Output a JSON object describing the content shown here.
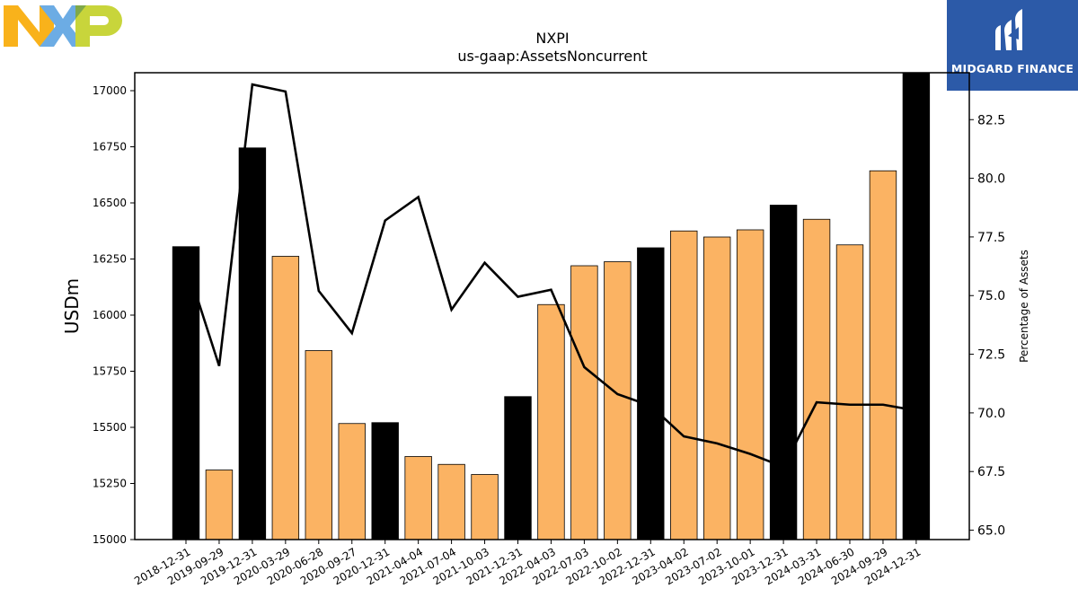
{
  "branding": {
    "company_logo_text": "NXP",
    "publisher_name": "MIDGARD FINANCE",
    "publisher_icon": "midgard-m-icon",
    "nxp_colors": [
      "#f9b21b",
      "#6cace4",
      "#c8d53b"
    ],
    "publisher_bg": "#2c5aa8"
  },
  "chart_data": {
    "type": "bar",
    "title": "NXPI",
    "subtitle": "us-gaap:AssetsNoncurrent",
    "ylabel": "USDm",
    "y2label": "Percentage of Assets",
    "ylim": [
      15000,
      17080
    ],
    "y2lim": [
      64.6,
      84.5
    ],
    "yticks": [
      15000,
      15250,
      15500,
      15750,
      16000,
      16250,
      16500,
      16750,
      17000
    ],
    "y2ticks": [
      65.0,
      67.5,
      70.0,
      72.5,
      75.0,
      77.5,
      80.0,
      82.5
    ],
    "grid": false,
    "categories": [
      "2018-12-31",
      "2019-09-29",
      "2019-12-31",
      "2020-03-29",
      "2020-06-28",
      "2020-09-27",
      "2020-12-31",
      "2021-04-04",
      "2021-07-04",
      "2021-10-03",
      "2021-12-31",
      "2022-04-03",
      "2022-07-03",
      "2022-10-02",
      "2022-12-31",
      "2023-04-02",
      "2023-07-02",
      "2023-10-01",
      "2023-12-31",
      "2024-03-31",
      "2024-06-30",
      "2024-09-29",
      "2024-12-31"
    ],
    "values": [
      16305,
      15310,
      16745,
      16262,
      15842,
      15517,
      15521,
      15370,
      15335,
      15290,
      15637,
      16047,
      16220,
      16238,
      16300,
      16375,
      16348,
      16380,
      16490,
      16427,
      16313,
      16643,
      17085
    ],
    "annual": [
      true,
      false,
      true,
      false,
      false,
      false,
      true,
      false,
      false,
      false,
      true,
      false,
      false,
      false,
      true,
      false,
      false,
      false,
      true,
      false,
      false,
      false,
      true
    ],
    "colors": {
      "annual": "#000000",
      "quarter": "#fbb363"
    },
    "line_series": {
      "values": [
        76.4,
        72.0,
        84.0,
        83.7,
        75.2,
        73.4,
        78.2,
        79.2,
        74.4,
        76.4,
        74.95,
        75.25,
        71.95,
        70.8,
        70.3,
        69.0,
        68.7,
        68.25,
        67.7,
        70.45,
        70.35,
        70.35,
        70.1
      ],
      "color": "#000000"
    }
  }
}
